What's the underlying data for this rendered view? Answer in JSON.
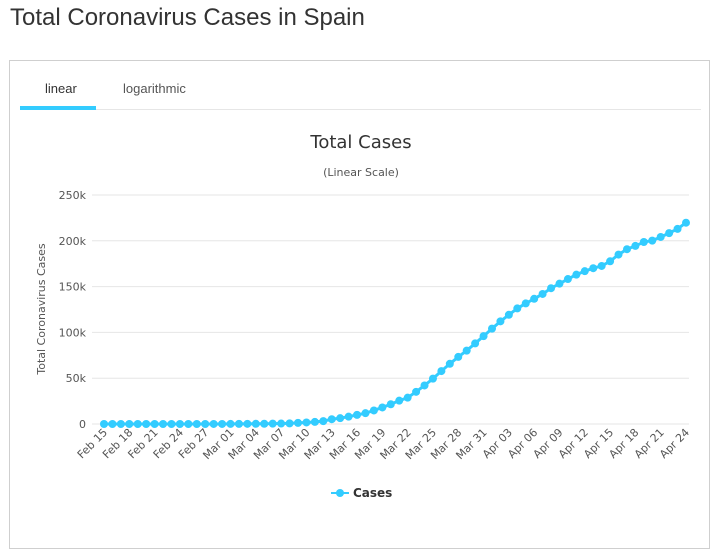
{
  "page": {
    "title": "Total Coronavirus Cases in Spain"
  },
  "tabs": [
    {
      "label": "linear",
      "active": true
    },
    {
      "label": "logarithmic",
      "active": false
    }
  ],
  "colors": {
    "series": "#33ccff",
    "accent": "#33ccff",
    "grid": "#e6e6e6"
  },
  "chart_data": {
    "type": "line",
    "title": "Total Cases",
    "subtitle": "(Linear Scale)",
    "xlabel": "",
    "ylabel": "Total Coronavirus Cases",
    "ylim": [
      0,
      250000
    ],
    "yticks": [
      0,
      50000,
      100000,
      150000,
      200000,
      250000
    ],
    "ytick_labels": [
      "0",
      "50k",
      "100k",
      "150k",
      "200k",
      "250k"
    ],
    "xtick_labels": [
      "Feb 15",
      "Feb 18",
      "Feb 21",
      "Feb 24",
      "Feb 27",
      "Mar 01",
      "Mar 04",
      "Mar 07",
      "Mar 10",
      "Mar 13",
      "Mar 16",
      "Mar 19",
      "Mar 22",
      "Mar 25",
      "Mar 28",
      "Mar 31",
      "Apr 03",
      "Apr 06",
      "Apr 09",
      "Apr 12",
      "Apr 15",
      "Apr 18",
      "Apr 21",
      "Apr 24"
    ],
    "grid": true,
    "legend": "bottom-center",
    "categories": [
      "Feb 15",
      "Feb 16",
      "Feb 17",
      "Feb 18",
      "Feb 19",
      "Feb 20",
      "Feb 21",
      "Feb 22",
      "Feb 23",
      "Feb 24",
      "Feb 25",
      "Feb 26",
      "Feb 27",
      "Feb 28",
      "Feb 29",
      "Mar 01",
      "Mar 02",
      "Mar 03",
      "Mar 04",
      "Mar 05",
      "Mar 06",
      "Mar 07",
      "Mar 08",
      "Mar 09",
      "Mar 10",
      "Mar 11",
      "Mar 12",
      "Mar 13",
      "Mar 14",
      "Mar 15",
      "Mar 16",
      "Mar 17",
      "Mar 18",
      "Mar 19",
      "Mar 20",
      "Mar 21",
      "Mar 22",
      "Mar 23",
      "Mar 24",
      "Mar 25",
      "Mar 26",
      "Mar 27",
      "Mar 28",
      "Mar 29",
      "Mar 30",
      "Mar 31",
      "Apr 01",
      "Apr 02",
      "Apr 03",
      "Apr 04",
      "Apr 05",
      "Apr 06",
      "Apr 07",
      "Apr 08",
      "Apr 09",
      "Apr 10",
      "Apr 11",
      "Apr 12",
      "Apr 13",
      "Apr 14",
      "Apr 15",
      "Apr 16",
      "Apr 17",
      "Apr 18",
      "Apr 19",
      "Apr 20",
      "Apr 21",
      "Apr 22",
      "Apr 23",
      "Apr 24"
    ],
    "series": [
      {
        "name": "Cases",
        "values": [
          2,
          2,
          2,
          2,
          2,
          2,
          2,
          2,
          2,
          2,
          6,
          13,
          15,
          32,
          45,
          84,
          120,
          165,
          228,
          282,
          401,
          525,
          674,
          1231,
          1695,
          2277,
          3146,
          5232,
          6391,
          7988,
          9942,
          11826,
          14769,
          18077,
          21571,
          25496,
          28768,
          35136,
          42058,
          49515,
          57786,
          65719,
          73235,
          80110,
          87956,
          95923,
          104118,
          112065,
          119199,
          126168,
          131646,
          136675,
          141942,
          148220,
          153222,
          158273,
          163027,
          166831,
          170099,
          172541,
          177633,
          184948,
          190839,
          194416,
          198674,
          200210,
          204178,
          208389,
          213024,
          219764
        ]
      }
    ]
  }
}
